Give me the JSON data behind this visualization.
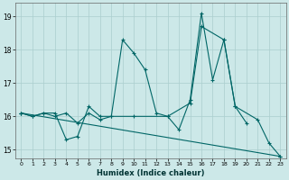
{
  "xlabel": "Humidex (Indice chaleur)",
  "background_color": "#cce8e8",
  "grid_color": "#aacece",
  "line_color": "#006666",
  "x_values": [
    0,
    1,
    2,
    3,
    4,
    5,
    6,
    7,
    8,
    9,
    10,
    11,
    12,
    13,
    14,
    15,
    16,
    17,
    18,
    19,
    20,
    21,
    22,
    23
  ],
  "line1_x": [
    0,
    1,
    2,
    3,
    4,
    5,
    6,
    7,
    8,
    9,
    10,
    11,
    12,
    13,
    14,
    15,
    16,
    17,
    18,
    19,
    20
  ],
  "line1_y": [
    16.1,
    16.0,
    16.1,
    16.0,
    16.1,
    15.8,
    16.1,
    15.9,
    16.0,
    18.3,
    17.9,
    17.4,
    16.1,
    16.0,
    15.6,
    16.5,
    19.1,
    17.1,
    18.3,
    16.3,
    15.8
  ],
  "line2_x": [
    0,
    1,
    2,
    3,
    4,
    5,
    6,
    7,
    8,
    10,
    13,
    15,
    16,
    18,
    19,
    21,
    22,
    23
  ],
  "line2_y": [
    16.1,
    16.0,
    16.1,
    16.1,
    15.3,
    15.4,
    16.3,
    16.0,
    16.0,
    16.0,
    16.0,
    16.4,
    18.7,
    18.3,
    16.3,
    15.9,
    15.2,
    14.8
  ],
  "line3_x": [
    0,
    23
  ],
  "line3_y": [
    16.1,
    14.8
  ],
  "xlim": [
    -0.5,
    23.5
  ],
  "ylim": [
    14.75,
    19.4
  ],
  "yticks": [
    15,
    16,
    17,
    18,
    19
  ],
  "xticks": [
    0,
    1,
    2,
    3,
    4,
    5,
    6,
    7,
    8,
    9,
    10,
    11,
    12,
    13,
    14,
    15,
    16,
    17,
    18,
    19,
    20,
    21,
    22,
    23
  ]
}
